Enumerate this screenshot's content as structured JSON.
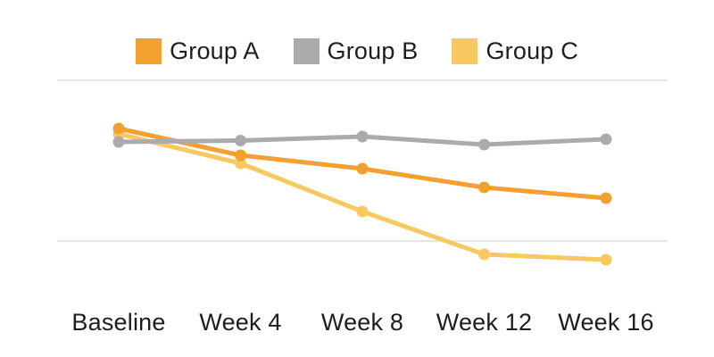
{
  "colors": {
    "background": "#ffffff",
    "gridline": "#e6e6e6",
    "text": "#1e1e1e"
  },
  "chart_data": {
    "type": "line",
    "title": "",
    "xlabel": "",
    "ylabel": "",
    "categories": [
      "Baseline",
      "Week 4",
      "Week 8",
      "Week 12",
      "Week 16"
    ],
    "series": [
      {
        "name": "Group A",
        "color": "#F2A030",
        "values": [
          82,
          72,
          67,
          60,
          56
        ]
      },
      {
        "name": "Group B",
        "color": "#ABABAB",
        "values": [
          77,
          77.5,
          79,
          76,
          78
        ]
      },
      {
        "name": "Group C",
        "color": "#F8C960",
        "values": [
          80,
          69,
          51,
          35,
          33
        ]
      }
    ],
    "ylim": [
      25,
      105
    ],
    "gridline_values": [
      100,
      40
    ],
    "grid": "horizontal-only, 2 unlabeled gridlines",
    "legend_position": "top-center",
    "y_axis_labels_visible": false
  }
}
